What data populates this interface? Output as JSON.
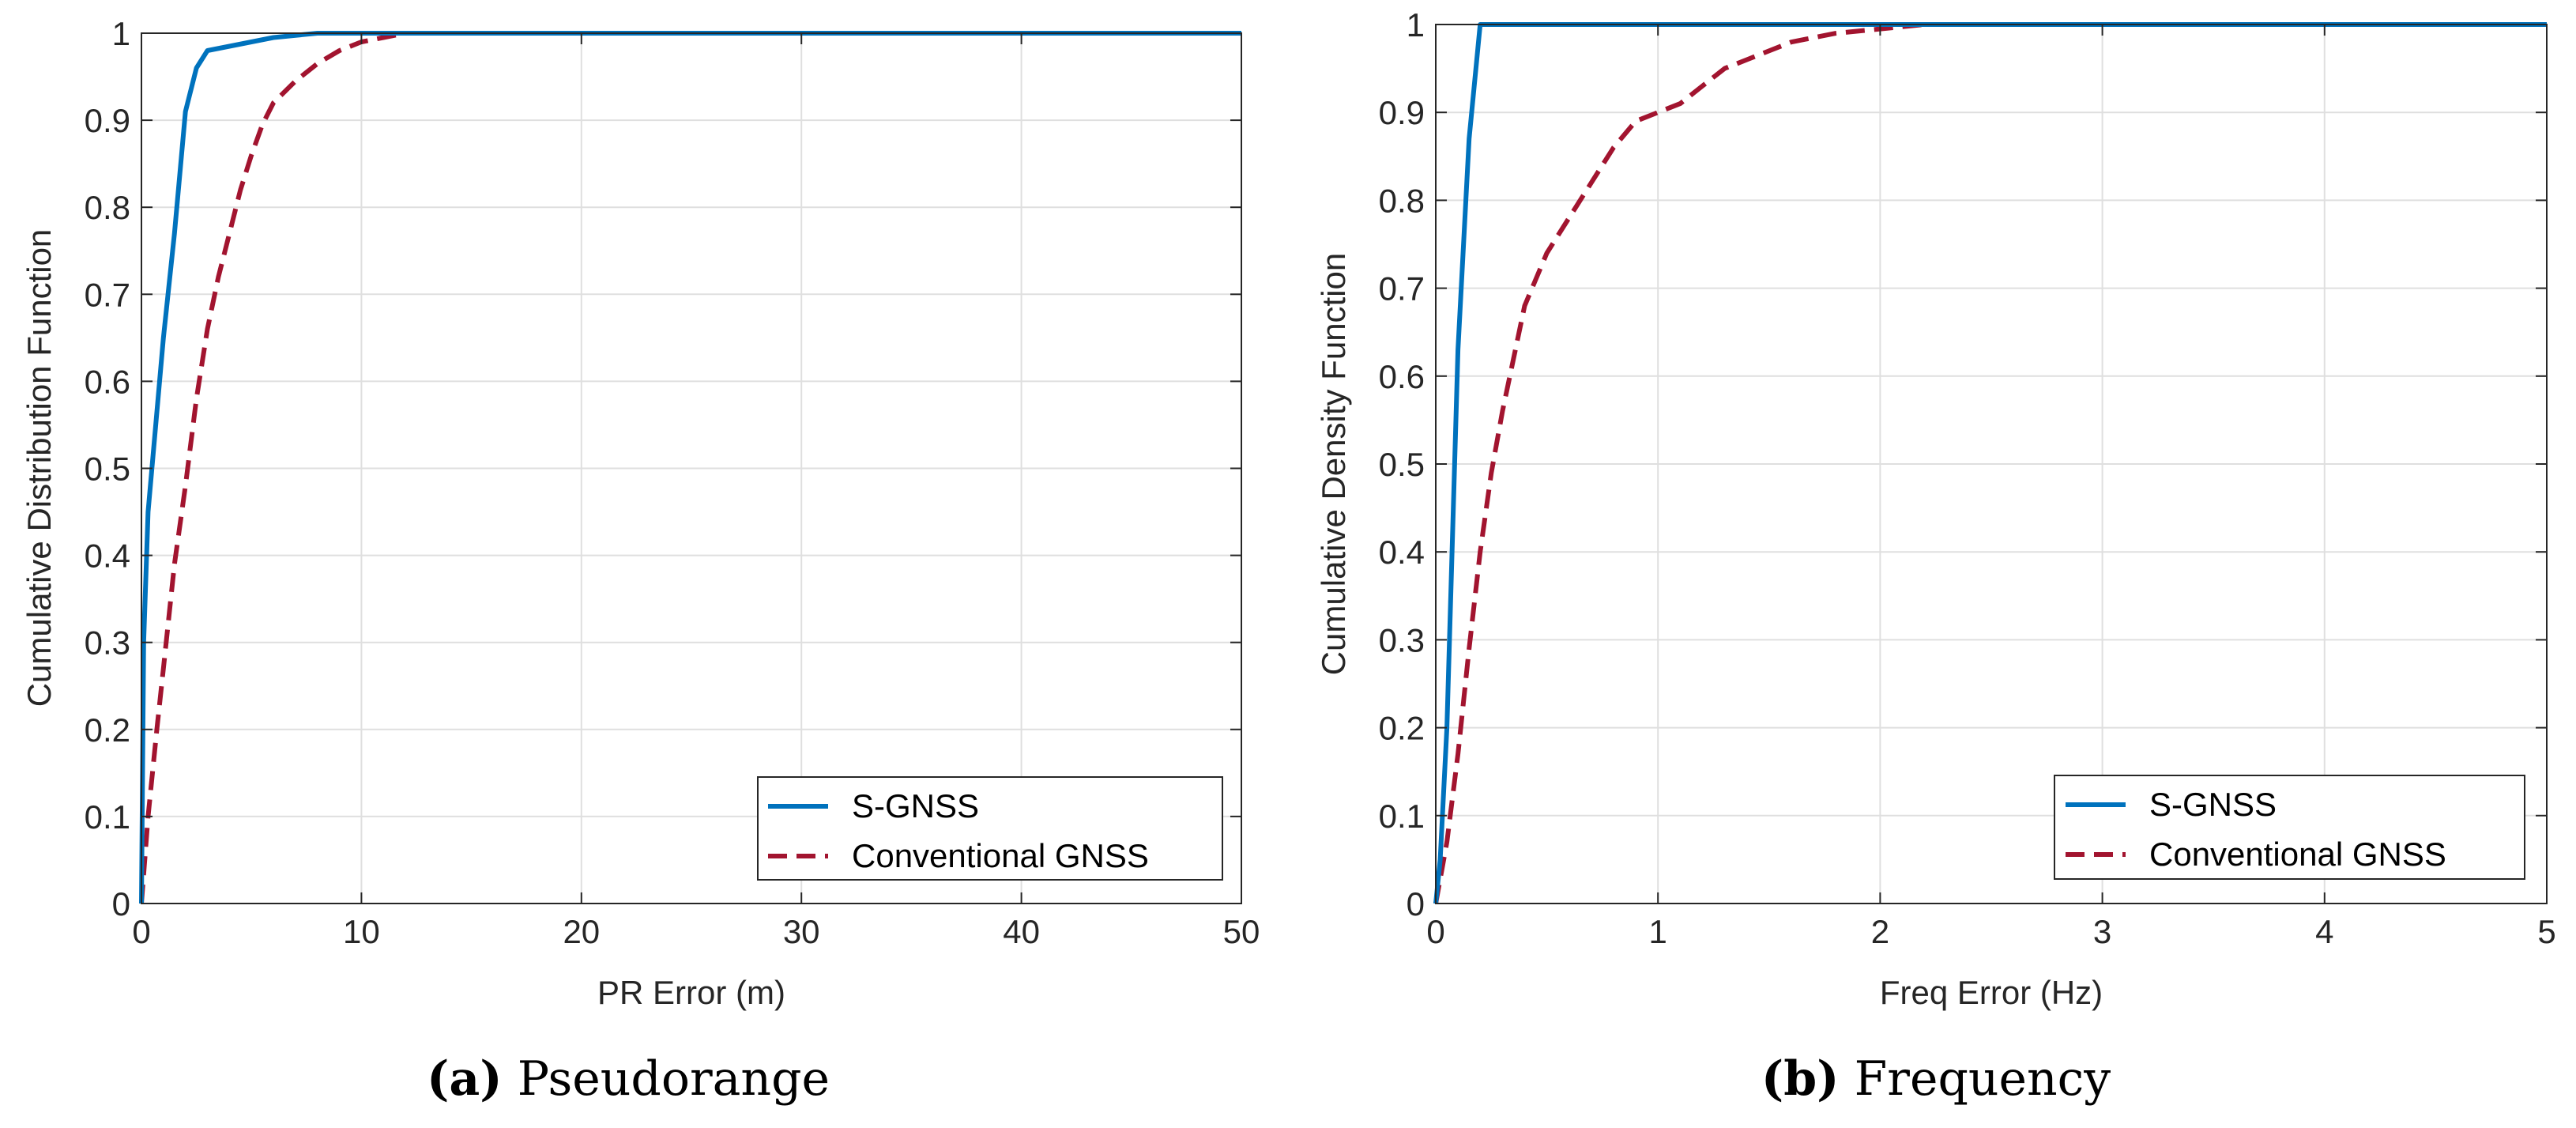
{
  "chart_data": [
    {
      "type": "line",
      "panel_label": "(a)",
      "caption": "Pseudorange",
      "xlabel": "PR Error (m)",
      "ylabel": "Cumulative Distribution Function",
      "xlim": [
        0,
        50
      ],
      "ylim": [
        0,
        1
      ],
      "xticks": [
        0,
        10,
        20,
        30,
        40,
        50
      ],
      "xtick_labels": [
        "0",
        "10",
        "20",
        "30",
        "40",
        "50"
      ],
      "yticks": [
        0,
        0.1,
        0.2,
        0.3,
        0.4,
        0.5,
        0.6,
        0.7,
        0.8,
        0.9,
        1
      ],
      "ytick_labels": [
        "0",
        "0.1",
        "0.2",
        "0.3",
        "0.4",
        "0.5",
        "0.6",
        "0.7",
        "0.8",
        "0.9",
        "1"
      ],
      "grid": true,
      "legend_position": "bottom-right",
      "series": [
        {
          "name": "S-GNSS",
          "color": "#0072BD",
          "style": "solid",
          "x": [
            0,
            0.1,
            0.3,
            1,
            1.5,
            2,
            2.5,
            3,
            4,
            5,
            6,
            8,
            50
          ],
          "y": [
            0,
            0.3,
            0.45,
            0.65,
            0.77,
            0.91,
            0.96,
            0.98,
            0.985,
            0.99,
            0.995,
            1,
            1
          ]
        },
        {
          "name": "Conventional GNSS",
          "color": "#A2142F",
          "style": "dashed",
          "x": [
            0,
            0.3,
            0.7,
            1,
            1.5,
            2,
            2.5,
            3,
            3.5,
            4,
            4.5,
            5,
            5.5,
            6,
            7,
            8,
            9,
            10,
            11,
            12,
            13,
            50
          ],
          "y": [
            0,
            0.1,
            0.2,
            0.27,
            0.39,
            0.48,
            0.58,
            0.66,
            0.72,
            0.77,
            0.82,
            0.86,
            0.895,
            0.92,
            0.945,
            0.965,
            0.98,
            0.99,
            0.995,
            1,
            1,
            1
          ]
        }
      ]
    },
    {
      "type": "line",
      "panel_label": "(b)",
      "caption": "Frequency",
      "xlabel": "Freq Error (Hz)",
      "ylabel": "Cumulative Density Function",
      "xlim": [
        0,
        5
      ],
      "ylim": [
        0,
        1
      ],
      "xticks": [
        0,
        1,
        2,
        3,
        4,
        5
      ],
      "xtick_labels": [
        "0",
        "1",
        "2",
        "3",
        "4",
        "5"
      ],
      "yticks": [
        0,
        0.1,
        0.2,
        0.3,
        0.4,
        0.5,
        0.6,
        0.7,
        0.8,
        0.9,
        1
      ],
      "ytick_labels": [
        "0",
        "0.1",
        "0.2",
        "0.3",
        "0.4",
        "0.5",
        "0.6",
        "0.7",
        "0.8",
        "0.9",
        "1"
      ],
      "grid": true,
      "legend_position": "bottom-right",
      "series": [
        {
          "name": "S-GNSS",
          "color": "#0072BD",
          "style": "solid",
          "x": [
            0,
            0.02,
            0.05,
            0.1,
            0.15,
            0.2,
            5
          ],
          "y": [
            0,
            0.05,
            0.2,
            0.63,
            0.87,
            1,
            1
          ]
        },
        {
          "name": "Conventional GNSS",
          "color": "#A2142F",
          "style": "dashed",
          "x": [
            0,
            0.05,
            0.1,
            0.15,
            0.2,
            0.25,
            0.3,
            0.4,
            0.5,
            0.6,
            0.7,
            0.8,
            0.9,
            1.0,
            1.1,
            1.2,
            1.3,
            1.4,
            1.6,
            1.8,
            2.0,
            2.2,
            2.4,
            5
          ],
          "y": [
            0,
            0.07,
            0.17,
            0.29,
            0.4,
            0.49,
            0.56,
            0.68,
            0.74,
            0.78,
            0.82,
            0.86,
            0.89,
            0.9,
            0.91,
            0.93,
            0.95,
            0.96,
            0.98,
            0.99,
            0.995,
            1,
            1,
            1
          ]
        }
      ]
    }
  ]
}
